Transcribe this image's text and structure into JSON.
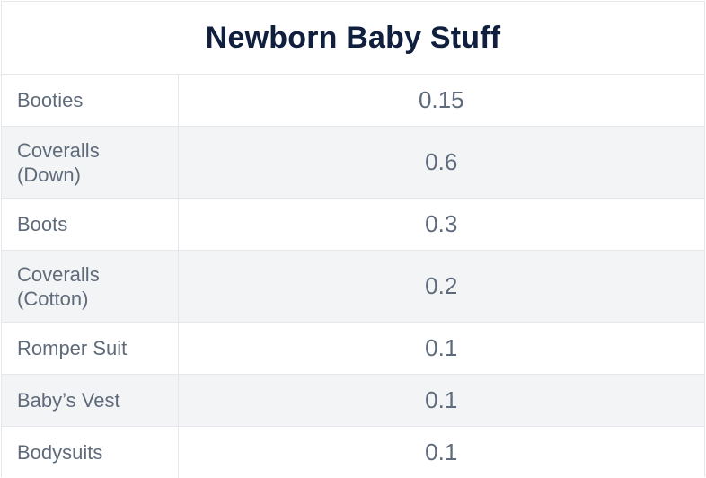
{
  "chart_data": {
    "type": "table",
    "title": "Newborn Baby Stuff",
    "rows": [
      {
        "label": "Booties",
        "value": "0.15"
      },
      {
        "label": "Coveralls (Down)",
        "value": "0.6"
      },
      {
        "label": "Boots",
        "value": "0.3"
      },
      {
        "label": "Coveralls (Cotton)",
        "value": "0.2"
      },
      {
        "label": "Romper Suit",
        "value": "0.1"
      },
      {
        "label": "Baby’s Vest",
        "value": "0.1"
      },
      {
        "label": "Bodysuits",
        "value": "0.1"
      }
    ]
  }
}
